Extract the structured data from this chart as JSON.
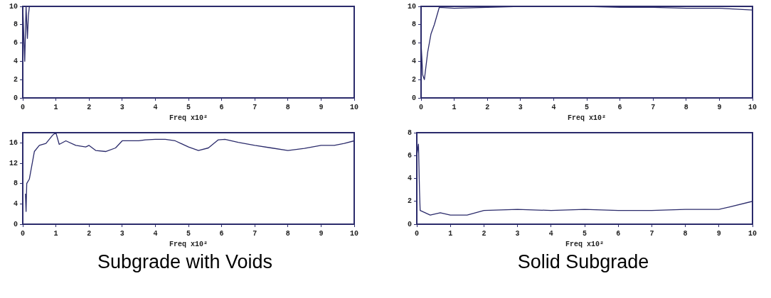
{
  "chart_data": [
    {
      "type": "line",
      "xlabel": "Freq x10²",
      "xlim": [
        0,
        10
      ],
      "xticks": [
        0,
        1,
        2,
        3,
        4,
        5,
        6,
        7,
        8,
        9,
        10
      ],
      "ylim": [
        0,
        10
      ],
      "yticks": [
        0,
        2,
        4,
        6,
        8,
        10
      ],
      "grid": false,
      "legend": false,
      "series": [
        {
          "color": "#2b2b6b",
          "x": [
            0,
            0.04,
            0.06,
            0.1,
            0.14,
            0.17,
            0.2,
            0.26,
            1,
            3,
            5,
            7,
            9,
            10
          ],
          "values": [
            10,
            6,
            4,
            10,
            6.5,
            9,
            10,
            10,
            10,
            10,
            10,
            10,
            10,
            10
          ]
        }
      ]
    },
    {
      "type": "line",
      "xlabel": "Freq x10²",
      "xlim": [
        0,
        10
      ],
      "xticks": [
        0,
        1,
        2,
        3,
        4,
        5,
        6,
        7,
        8,
        9,
        10
      ],
      "ylim": [
        0,
        18
      ],
      "yticks": [
        0,
        4,
        8,
        12,
        16
      ],
      "grid": false,
      "legend": false,
      "annotations": [
        "Subgrade with Voids"
      ],
      "series": [
        {
          "color": "#2b2b6b",
          "x": [
            0.08,
            0.1,
            0.12,
            0.2,
            0.35,
            0.5,
            0.7,
            0.9,
            1.0,
            1.1,
            1.3,
            1.6,
            1.9,
            2.0,
            2.2,
            2.5,
            2.8,
            3.0,
            3.5,
            3.7,
            4.0,
            4.3,
            4.6,
            5.0,
            5.3,
            5.6,
            5.9,
            6.1,
            6.5,
            7.0,
            7.5,
            8.0,
            8.5,
            9.0,
            9.4,
            9.7,
            10
          ],
          "values": [
            6,
            2.5,
            8,
            8.9,
            14.3,
            15.5,
            15.9,
            17.5,
            18,
            15.7,
            16.4,
            15.5,
            15.2,
            15.5,
            14.5,
            14.3,
            15,
            16.4,
            16.4,
            16.6,
            16.7,
            16.7,
            16.4,
            15.2,
            14.5,
            15,
            16.6,
            16.7,
            16.1,
            15.5,
            15,
            14.5,
            14.9,
            15.5,
            15.5,
            15.9,
            16.4
          ]
        }
      ]
    },
    {
      "type": "line",
      "xlabel": "Freq x10²",
      "xlim": [
        0,
        10
      ],
      "xticks": [
        0,
        1,
        2,
        3,
        4,
        5,
        6,
        7,
        8,
        9,
        10
      ],
      "ylim": [
        0,
        10
      ],
      "yticks": [
        0,
        2,
        4,
        6,
        8,
        10
      ],
      "grid": false,
      "legend": false,
      "series": [
        {
          "color": "#2b2b6b",
          "x": [
            0,
            0.05,
            0.1,
            0.2,
            0.3,
            0.4,
            0.55,
            1,
            2,
            3,
            4,
            5,
            6,
            7,
            8,
            9,
            10
          ],
          "values": [
            6,
            2.5,
            2,
            5,
            7,
            8,
            9.9,
            9.8,
            9.9,
            10,
            10,
            10,
            9.9,
            9.9,
            9.8,
            9.8,
            9.6
          ]
        }
      ]
    },
    {
      "type": "line",
      "xlabel": "Freq x10²",
      "xlim": [
        0,
        10
      ],
      "xticks": [
        0,
        1,
        2,
        3,
        4,
        5,
        6,
        7,
        8,
        9,
        10
      ],
      "ylim": [
        0,
        8
      ],
      "yticks": [
        0,
        2,
        4,
        6,
        8
      ],
      "grid": false,
      "legend": false,
      "annotations": [
        "Solid Subgrade"
      ],
      "series": [
        {
          "color": "#2b2b6b",
          "x": [
            0,
            0.05,
            0.08,
            0.1,
            0.4,
            0.7,
            1,
            1.5,
            2,
            3,
            4,
            5,
            6,
            7,
            8,
            9,
            9.3,
            10
          ],
          "values": [
            6,
            7,
            3,
            1.2,
            0.8,
            1.0,
            0.8,
            0.8,
            1.2,
            1.3,
            1.2,
            1.3,
            1.2,
            1.2,
            1.3,
            1.3,
            1.5,
            2.0
          ]
        }
      ]
    }
  ]
}
